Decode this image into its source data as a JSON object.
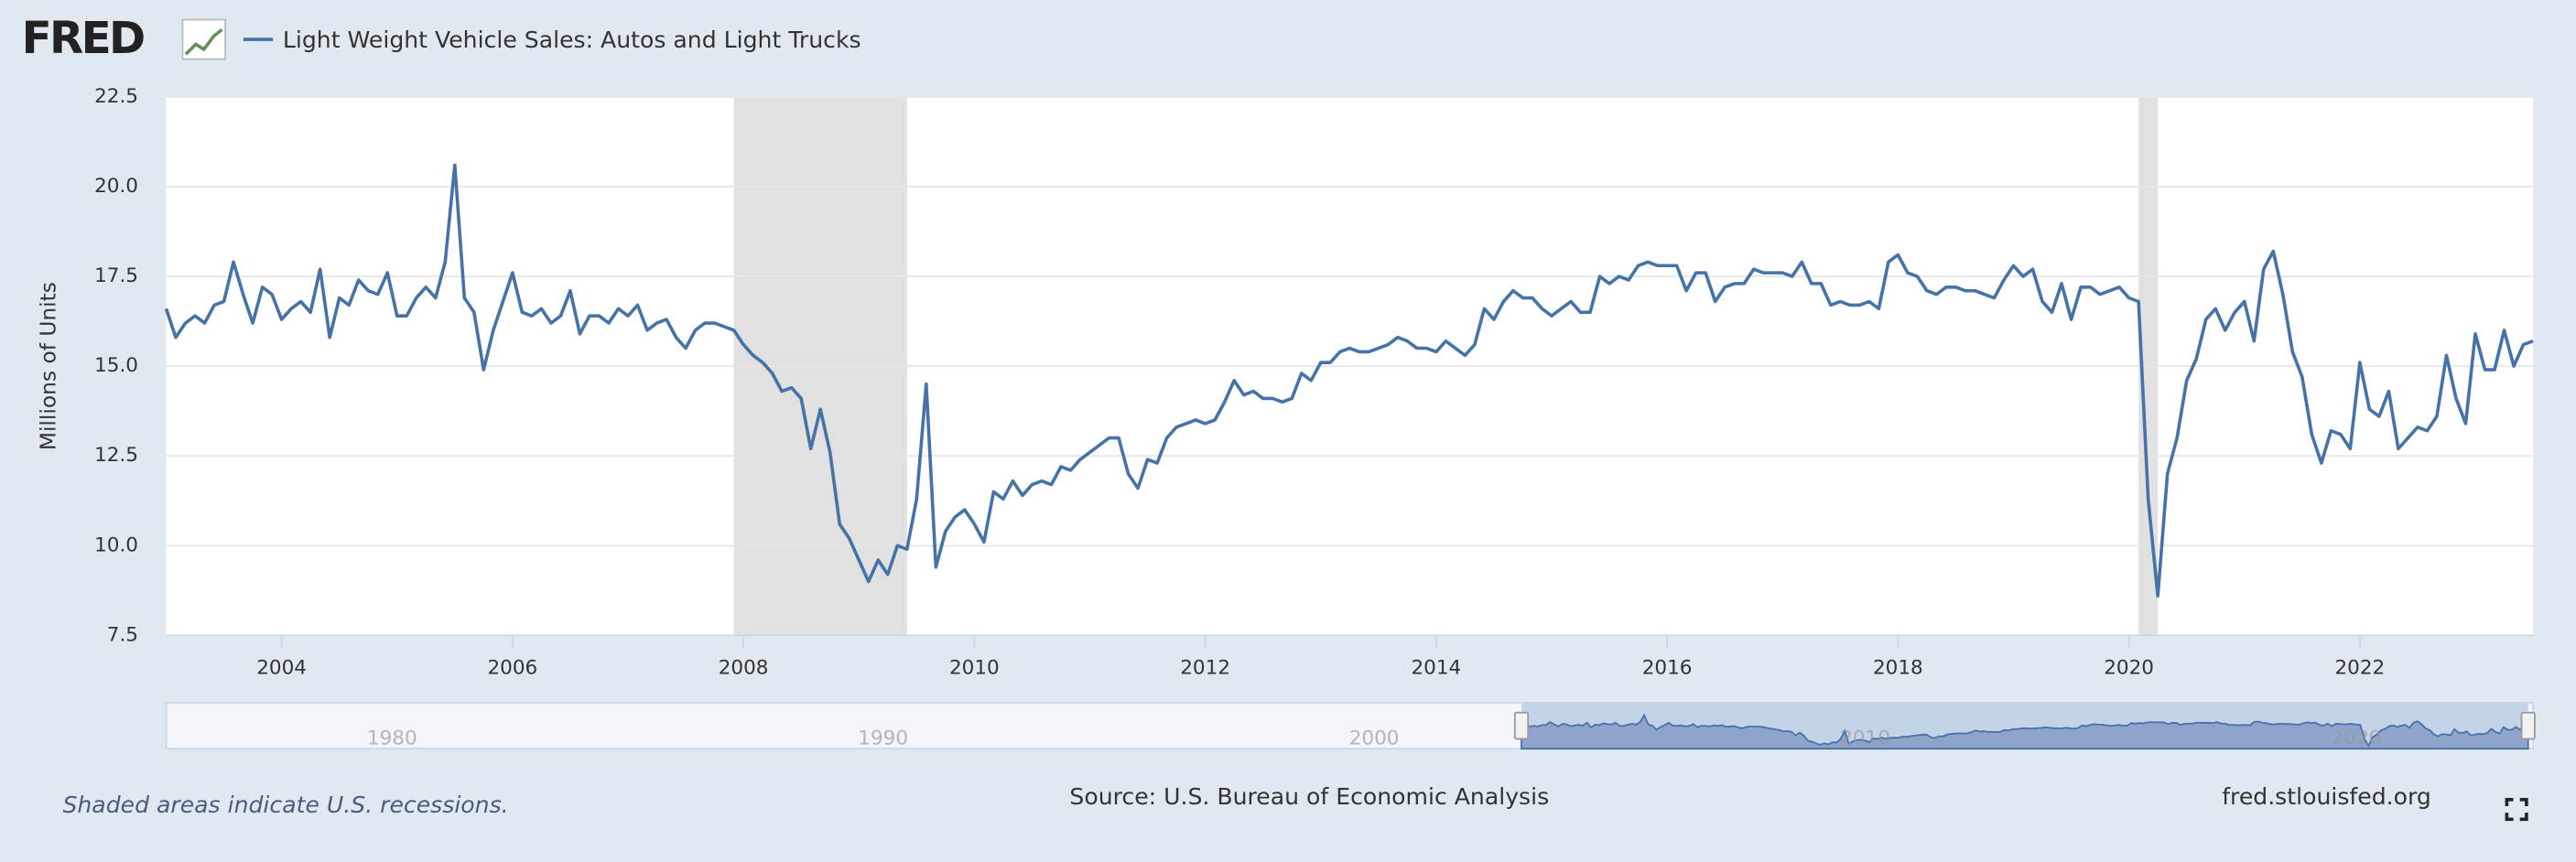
{
  "logo": "FRED",
  "chart_data": {
    "type": "line",
    "y_label": "Millions of Units",
    "note": "Shaded areas indicate U.S. recessions.",
    "source": "Source: U.S. Bureau of Economic Analysis",
    "site": "fred.stlouisfed.org",
    "x": [
      "2003-01",
      "2003-02",
      "2003-03",
      "2003-04",
      "2003-05",
      "2003-06",
      "2003-07",
      "2003-08",
      "2003-09",
      "2003-10",
      "2003-11",
      "2003-12",
      "2004-01",
      "2004-02",
      "2004-03",
      "2004-04",
      "2004-05",
      "2004-06",
      "2004-07",
      "2004-08",
      "2004-09",
      "2004-10",
      "2004-11",
      "2004-12",
      "2005-01",
      "2005-02",
      "2005-03",
      "2005-04",
      "2005-05",
      "2005-06",
      "2005-07",
      "2005-08",
      "2005-09",
      "2005-10",
      "2005-11",
      "2005-12",
      "2006-01",
      "2006-02",
      "2006-03",
      "2006-04",
      "2006-05",
      "2006-06",
      "2006-07",
      "2006-08",
      "2006-09",
      "2006-10",
      "2006-11",
      "2006-12",
      "2007-01",
      "2007-02",
      "2007-03",
      "2007-04",
      "2007-05",
      "2007-06",
      "2007-07",
      "2007-08",
      "2007-09",
      "2007-10",
      "2007-11",
      "2007-12",
      "2008-01",
      "2008-02",
      "2008-03",
      "2008-04",
      "2008-05",
      "2008-06",
      "2008-07",
      "2008-08",
      "2008-09",
      "2008-10",
      "2008-11",
      "2008-12",
      "2009-01",
      "2009-02",
      "2009-03",
      "2009-04",
      "2009-05",
      "2009-06",
      "2009-07",
      "2009-08",
      "2009-09",
      "2009-10",
      "2009-11",
      "2009-12",
      "2010-01",
      "2010-02",
      "2010-03",
      "2010-04",
      "2010-05",
      "2010-06",
      "2010-07",
      "2010-08",
      "2010-09",
      "2010-10",
      "2010-11",
      "2010-12",
      "2011-01",
      "2011-02",
      "2011-03",
      "2011-04",
      "2011-05",
      "2011-06",
      "2011-07",
      "2011-08",
      "2011-09",
      "2011-10",
      "2011-11",
      "2011-12",
      "2012-01",
      "2012-02",
      "2012-03",
      "2012-04",
      "2012-05",
      "2012-06",
      "2012-07",
      "2012-08",
      "2012-09",
      "2012-10",
      "2012-11",
      "2012-12",
      "2013-01",
      "2013-02",
      "2013-03",
      "2013-04",
      "2013-05",
      "2013-06",
      "2013-07",
      "2013-08",
      "2013-09",
      "2013-10",
      "2013-11",
      "2013-12",
      "2014-01",
      "2014-02",
      "2014-03",
      "2014-04",
      "2014-05",
      "2014-06",
      "2014-07",
      "2014-08",
      "2014-09",
      "2014-10",
      "2014-11",
      "2014-12",
      "2015-01",
      "2015-02",
      "2015-03",
      "2015-04",
      "2015-05",
      "2015-06",
      "2015-07",
      "2015-08",
      "2015-09",
      "2015-10",
      "2015-11",
      "2015-12",
      "2016-01",
      "2016-02",
      "2016-03",
      "2016-04",
      "2016-05",
      "2016-06",
      "2016-07",
      "2016-08",
      "2016-09",
      "2016-10",
      "2016-11",
      "2016-12",
      "2017-01",
      "2017-02",
      "2017-03",
      "2017-04",
      "2017-05",
      "2017-06",
      "2017-07",
      "2017-08",
      "2017-09",
      "2017-10",
      "2017-11",
      "2017-12",
      "2018-01",
      "2018-02",
      "2018-03",
      "2018-04",
      "2018-05",
      "2018-06",
      "2018-07",
      "2018-08",
      "2018-09",
      "2018-10",
      "2018-11",
      "2018-12",
      "2019-01",
      "2019-02",
      "2019-03",
      "2019-04",
      "2019-05",
      "2019-06",
      "2019-07",
      "2019-08",
      "2019-09",
      "2019-10",
      "2019-11",
      "2019-12",
      "2020-01",
      "2020-02",
      "2020-03",
      "2020-04",
      "2020-05",
      "2020-06",
      "2020-07",
      "2020-08",
      "2020-09",
      "2020-10",
      "2020-11",
      "2020-12",
      "2021-01",
      "2021-02",
      "2021-03",
      "2021-04",
      "2021-05",
      "2021-06",
      "2021-07",
      "2021-08",
      "2021-09",
      "2021-10",
      "2021-11",
      "2021-12",
      "2022-01",
      "2022-02",
      "2022-03",
      "2022-04",
      "2022-05",
      "2022-06",
      "2022-07",
      "2022-08",
      "2022-09",
      "2022-10",
      "2022-11",
      "2022-12",
      "2023-01",
      "2023-02",
      "2023-03",
      "2023-04",
      "2023-05",
      "2023-06",
      "2023-07"
    ],
    "series": [
      {
        "name": "Light Weight Vehicle Sales: Autos and Light Trucks",
        "color": "#4572a7",
        "values": [
          16.6,
          15.8,
          16.2,
          16.4,
          16.2,
          16.7,
          16.8,
          17.9,
          17.0,
          16.2,
          17.2,
          17.0,
          16.3,
          16.6,
          16.8,
          16.5,
          17.7,
          15.8,
          16.9,
          16.7,
          17.4,
          17.1,
          17.0,
          17.6,
          16.4,
          16.4,
          16.9,
          17.2,
          16.9,
          17.9,
          20.6,
          16.9,
          16.5,
          14.9,
          16.0,
          16.8,
          17.6,
          16.5,
          16.4,
          16.6,
          16.2,
          16.4,
          17.1,
          15.9,
          16.4,
          16.4,
          16.2,
          16.6,
          16.4,
          16.7,
          16.0,
          16.2,
          16.3,
          15.8,
          15.5,
          16.0,
          16.2,
          16.2,
          16.1,
          16.0,
          15.6,
          15.3,
          15.1,
          14.8,
          14.3,
          14.4,
          14.1,
          12.7,
          13.8,
          12.6,
          10.6,
          10.2,
          9.6,
          9.0,
          9.6,
          9.2,
          10.0,
          9.9,
          11.3,
          14.5,
          9.4,
          10.4,
          10.8,
          11.0,
          10.6,
          10.1,
          11.5,
          11.3,
          11.8,
          11.4,
          11.7,
          11.8,
          11.7,
          12.2,
          12.1,
          12.4,
          12.6,
          12.8,
          13.0,
          13.0,
          12.0,
          11.6,
          12.4,
          12.3,
          13.0,
          13.3,
          13.4,
          13.5,
          13.4,
          13.5,
          14.0,
          14.6,
          14.2,
          14.3,
          14.1,
          14.1,
          14.0,
          14.1,
          14.8,
          14.6,
          15.1,
          15.1,
          15.4,
          15.5,
          15.4,
          15.4,
          15.5,
          15.6,
          15.8,
          15.7,
          15.5,
          15.5,
          15.4,
          15.7,
          15.5,
          15.3,
          15.6,
          16.6,
          16.3,
          16.8,
          17.1,
          16.9,
          16.9,
          16.6,
          16.4,
          16.6,
          16.8,
          16.5,
          16.5,
          17.5,
          17.3,
          17.5,
          17.4,
          17.8,
          17.9,
          17.8,
          17.8,
          17.8,
          17.1,
          17.6,
          17.6,
          16.8,
          17.2,
          17.3,
          17.3,
          17.7,
          17.6,
          17.6,
          17.6,
          17.5,
          17.9,
          17.3,
          17.3,
          16.7,
          16.8,
          16.7,
          16.7,
          16.8,
          16.6,
          17.9,
          18.1,
          17.6,
          17.5,
          17.1,
          17.0,
          17.2,
          17.2,
          17.1,
          17.1,
          17.0,
          16.9,
          17.4,
          17.8,
          17.5,
          17.7,
          16.8,
          16.5,
          17.3,
          16.3,
          17.2,
          17.2,
          17.0,
          17.1,
          17.2,
          16.9,
          16.8,
          11.3,
          8.6,
          12.0,
          13.0,
          14.6,
          15.2,
          16.3,
          16.6,
          16.0,
          16.5,
          16.8,
          15.7,
          17.7,
          18.2,
          17.0,
          15.4,
          14.7,
          13.1,
          12.3,
          13.2,
          13.1,
          12.7,
          15.1,
          13.8,
          13.6,
          14.3,
          12.7,
          13.0,
          13.3,
          13.2,
          13.6,
          15.3,
          14.1,
          13.4,
          15.9,
          14.9,
          14.9,
          16.0,
          15.0,
          15.6,
          15.7
        ]
      }
    ],
    "xlim": [
      "2003-01",
      "2023-07"
    ],
    "xticks": [
      {
        "value": "2004-01",
        "label": "2004"
      },
      {
        "value": "2006-01",
        "label": "2006"
      },
      {
        "value": "2008-01",
        "label": "2008"
      },
      {
        "value": "2010-01",
        "label": "2010"
      },
      {
        "value": "2012-01",
        "label": "2012"
      },
      {
        "value": "2014-01",
        "label": "2014"
      },
      {
        "value": "2016-01",
        "label": "2016"
      },
      {
        "value": "2018-01",
        "label": "2018"
      },
      {
        "value": "2020-01",
        "label": "2020"
      },
      {
        "value": "2022-01",
        "label": "2022"
      }
    ],
    "ylim": [
      7.5,
      22.5
    ],
    "yticks": [
      7.5,
      {
        "value": 10,
        "label": "10.0"
      },
      12.5,
      {
        "value": 15,
        "label": "15.0"
      },
      17.5,
      {
        "value": 20,
        "label": "20.0"
      },
      22.5
    ],
    "grid": true,
    "recessions": [
      [
        "2007-12",
        "2009-06"
      ],
      [
        "2020-02",
        "2020-04"
      ]
    ],
    "recession_color": "#e1e1e1",
    "navigator": {
      "xlim": [
        1975.4,
        2023.6
      ],
      "xticks": [
        1980,
        1990,
        2000,
        2010,
        2020
      ]
    }
  }
}
